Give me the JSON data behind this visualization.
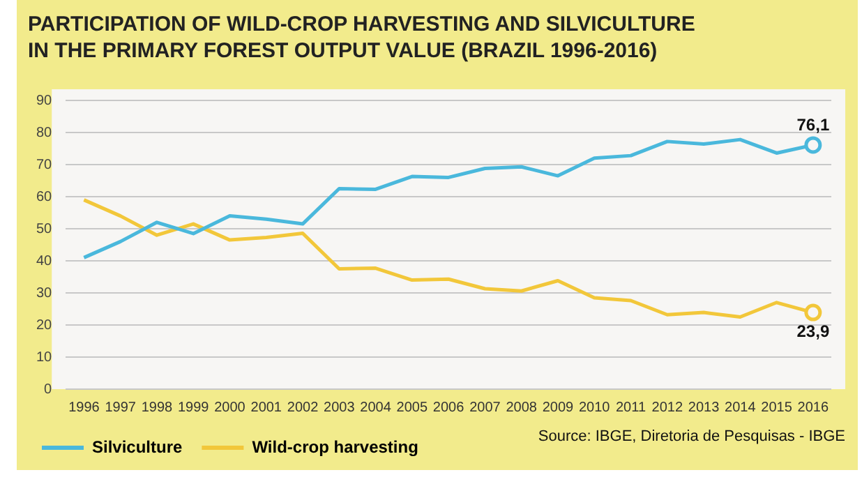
{
  "chart_data": {
    "type": "line",
    "title": "PARTICIPATION OF WILD-CROP HARVESTING AND SILVICULTURE\nIN THE PRIMARY FOREST OUTPUT VALUE  (BRAZIL 1996-2016)",
    "categories": [
      "1996",
      "1997",
      "1998",
      "1999",
      "2000",
      "2001",
      "2002",
      "2003",
      "2004",
      "2005",
      "2006",
      "2007",
      "2008",
      "2009",
      "2010",
      "2011",
      "2012",
      "2013",
      "2014",
      "2015",
      "2016"
    ],
    "series": [
      {
        "name": "Silviculture",
        "color": "#4ab8dc",
        "values": [
          41,
          46,
          52,
          48.5,
          54,
          53,
          51.5,
          62.5,
          62.3,
          66.3,
          66,
          68.8,
          69.3,
          66.5,
          72,
          72.8,
          77.2,
          76.4,
          77.8,
          73.6,
          76.1
        ],
        "value_labels": [
          null,
          null,
          null,
          null,
          null,
          null,
          null,
          null,
          null,
          null,
          null,
          null,
          null,
          null,
          null,
          null,
          null,
          null,
          null,
          null,
          "76,1"
        ]
      },
      {
        "name": "Wild-crop harvesting",
        "color": "#f2c73a",
        "values": [
          59,
          54,
          48,
          51.5,
          46.5,
          47.3,
          48.6,
          37.5,
          37.7,
          34,
          34.3,
          31.3,
          30.6,
          33.8,
          28.5,
          27.6,
          23.2,
          23.9,
          22.5,
          27,
          23.9
        ],
        "value_labels": [
          null,
          null,
          null,
          null,
          null,
          null,
          null,
          null,
          null,
          null,
          null,
          null,
          null,
          null,
          null,
          null,
          null,
          null,
          null,
          null,
          "23,9"
        ]
      }
    ],
    "ylim": [
      0,
      90
    ],
    "yticks": [
      0,
      10,
      20,
      30,
      40,
      50,
      60,
      70,
      80,
      90
    ],
    "grid": "y",
    "legend": "bottom left",
    "marker": "none",
    "line_style": "solid",
    "annotations": [
      "Source: IBGE, Diretoria de Pesquisas - IBGE"
    ]
  }
}
